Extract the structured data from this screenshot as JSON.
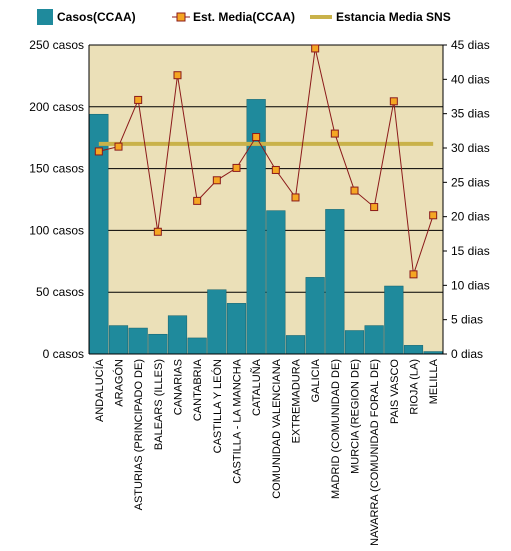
{
  "chart_data": {
    "type": "bar",
    "categories": [
      "ANDALUCÍA",
      "ARAGÓN",
      "ASTURIAS (PRINCIPADO DE)",
      "BALEARS (ILLES)",
      "CANARIAS",
      "CANTABRIA",
      "CASTILLA Y LEÓN",
      "CASTILLA - LA MANCHA",
      "CATALUÑA",
      "COMUNIDAD VALENCIANA",
      "EXTREMADURA",
      "GALICIA",
      "MADRID (COMUNIDAD DE)",
      "MURCIA (REGION DE)",
      "NAVARRA (COMUNIDAD FORAL DE)",
      "PAIS VASCO",
      "RIOJA (LA)",
      "MELILLA"
    ],
    "series": [
      {
        "name": "Casos(CCAA)",
        "kind": "bar",
        "axis": "left",
        "color": "#1f8a9c",
        "values": [
          194,
          23,
          21,
          16,
          31,
          13,
          52,
          41,
          206,
          116,
          15,
          62,
          117,
          19,
          23,
          55,
          7,
          2
        ]
      },
      {
        "name": "Est. Media(CCAA)",
        "kind": "line",
        "axis": "right",
        "color": "#f5a623",
        "line_color": "#8b1a1a",
        "values": [
          29.5,
          30.2,
          37,
          17.8,
          40.6,
          22.3,
          25.3,
          27.1,
          31.6,
          26.8,
          22.8,
          44.5,
          32.1,
          23.8,
          21.4,
          36.8,
          11.6,
          20.2
        ]
      },
      {
        "name": "Estancia Media SNS",
        "kind": "reference-line",
        "axis": "right",
        "color": "#c9b24a",
        "value": 30.6
      }
    ],
    "left_axis": {
      "ylim": [
        0,
        250
      ],
      "ticks": [
        0,
        50,
        100,
        150,
        200,
        250
      ],
      "tick_labels": [
        "0 casos",
        "50 casos",
        "100 casos",
        "150 casos",
        "200 casos",
        "250 casos"
      ]
    },
    "right_axis": {
      "ylim": [
        0,
        45
      ],
      "ticks": [
        0,
        5,
        10,
        15,
        20,
        25,
        30,
        35,
        40,
        45
      ],
      "tick_labels": [
        "0 dias",
        "5 dias",
        "10 dias",
        "15 dias",
        "20 dias",
        "25 dias",
        "30 dias",
        "35 dias",
        "40 dias",
        "45 dias"
      ]
    },
    "legend_position": "top",
    "grid": true,
    "plot_background": "#ebe0b8"
  }
}
